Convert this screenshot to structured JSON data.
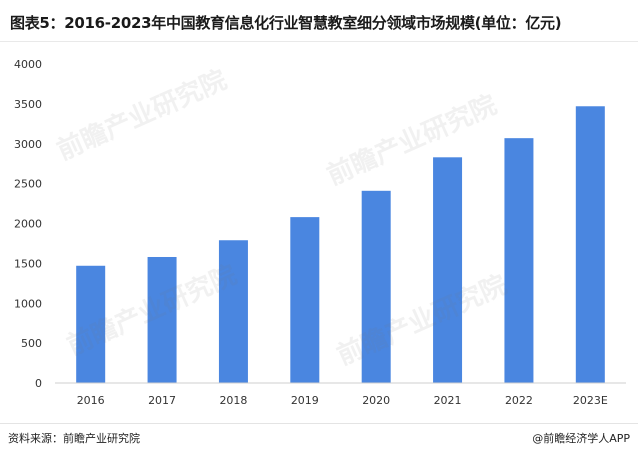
{
  "header": {
    "title": "图表5：2016-2023年中国教育信息化行业智慧教室细分领域市场规模(单位：亿元)"
  },
  "footer": {
    "source": "资料来源：前瞻产业研究院",
    "credit": "@前瞻经济学人APP"
  },
  "watermark": {
    "text": "前瞻产业研究院"
  },
  "colors": {
    "bar": "#4a86e0",
    "axis": "#cfcfcf",
    "tick_text": "#333333"
  },
  "chart_data": {
    "type": "bar",
    "categories": [
      "2016",
      "2017",
      "2018",
      "2019",
      "2020",
      "2021",
      "2022",
      "2023E"
    ],
    "values": [
      1470,
      1580,
      1790,
      2080,
      2410,
      2830,
      3070,
      3470
    ],
    "title": "图表5：2016-2023年中国教育信息化行业智慧教室细分领域市场规模(单位：亿元)",
    "xlabel": "",
    "ylabel": "",
    "ylim": [
      0,
      4000
    ],
    "yticks": [
      0,
      500,
      1000,
      1500,
      2000,
      2500,
      3000,
      3500,
      4000
    ],
    "grid": false,
    "legend": "none"
  }
}
